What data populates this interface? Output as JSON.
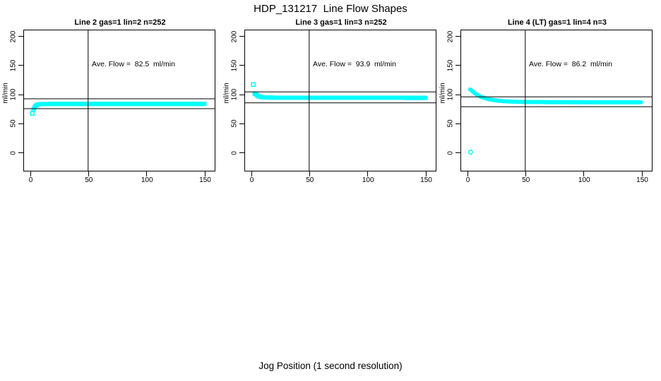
{
  "colors": {
    "marker": "#00FFFF",
    "axis": "#000000",
    "background": "#FFFFFF"
  },
  "chart_data": {
    "type": "scatter",
    "title": "HDP_131217  Line Flow Shapes",
    "xlabel": "Jog Position (1 second resolution)",
    "xlim": [
      0,
      150
    ],
    "ylim": [
      0,
      200
    ],
    "xticks": [
      0,
      50,
      100,
      150
    ],
    "yticks": [
      0,
      50,
      100,
      150,
      200
    ],
    "grid": false,
    "legend": "none",
    "panels": [
      {
        "title": "Line 2 gas=1 lin=2 n=252",
        "ylabel": "ml/min",
        "annotation": "Ave. Flow =  82.5  ml/min",
        "ave_flow_ml_min": 82.5,
        "marker": "square",
        "vline_x": 50,
        "hlines": [
          91.5,
          74.5
        ],
        "outlier": [
          2,
          66.5
        ],
        "points": [
          [
            3,
            73
          ],
          [
            3.5,
            75.3
          ],
          [
            4,
            77.2
          ],
          [
            4.5,
            78.6
          ],
          [
            5,
            79.7
          ],
          [
            5.5,
            80.5
          ],
          [
            6,
            81.1
          ],
          [
            6.5,
            81.5
          ],
          [
            7,
            81.8
          ],
          [
            8,
            82.1
          ],
          [
            9,
            82.3
          ],
          [
            10,
            82.4
          ],
          [
            12,
            82.5
          ],
          [
            14,
            82.6
          ],
          [
            16,
            82.6
          ],
          [
            18,
            82.7
          ],
          [
            20,
            82.7
          ],
          [
            25,
            82.7
          ],
          [
            30,
            82.7
          ],
          [
            35,
            82.7
          ],
          [
            40,
            82.7
          ],
          [
            45,
            82.7
          ],
          [
            50,
            82.7
          ],
          [
            55,
            82.7
          ],
          [
            60,
            82.7
          ],
          [
            65,
            82.7
          ],
          [
            70,
            82.7
          ],
          [
            75,
            82.7
          ],
          [
            80,
            82.7
          ],
          [
            85,
            82.7
          ],
          [
            90,
            82.7
          ],
          [
            95,
            82.7
          ],
          [
            100,
            82.7
          ],
          [
            105,
            82.7
          ],
          [
            110,
            82.7
          ],
          [
            115,
            82.7
          ],
          [
            120,
            82.7
          ],
          [
            125,
            82.7
          ],
          [
            130,
            82.7
          ],
          [
            135,
            82.7
          ],
          [
            140,
            82.7
          ],
          [
            145,
            82.7
          ],
          [
            150,
            82.7
          ]
        ]
      },
      {
        "title": "Line 3 gas=1 lin=3 n=252",
        "ylabel": "ml/min",
        "annotation": "Ave. Flow =  93.9  ml/min",
        "ave_flow_ml_min": 93.9,
        "marker": "square",
        "vline_x": 50,
        "hlines": [
          103.3,
          84.5
        ],
        "outlier": [
          2,
          116
        ],
        "points": [
          [
            3,
            100.5
          ],
          [
            3.5,
            99.4
          ],
          [
            4,
            100
          ],
          [
            4.5,
            98.8
          ],
          [
            5,
            97.9
          ],
          [
            5.5,
            97.1
          ],
          [
            6,
            96.4
          ],
          [
            6.5,
            95.9
          ],
          [
            7,
            95.4
          ],
          [
            7.5,
            95.1
          ],
          [
            8,
            94.8
          ],
          [
            9,
            94.4
          ],
          [
            10,
            94.1
          ],
          [
            11,
            93.9
          ],
          [
            12,
            93.8
          ],
          [
            14,
            93.7
          ],
          [
            16,
            93.6
          ],
          [
            18,
            93.6
          ],
          [
            20,
            93.5
          ],
          [
            25,
            93.5
          ],
          [
            30,
            93.5
          ],
          [
            35,
            93.4
          ],
          [
            40,
            93.4
          ],
          [
            45,
            93.4
          ],
          [
            50,
            93.4
          ],
          [
            55,
            93.4
          ],
          [
            60,
            93.3
          ],
          [
            65,
            93.3
          ],
          [
            70,
            93.3
          ],
          [
            75,
            93.3
          ],
          [
            80,
            93.3
          ],
          [
            85,
            93.3
          ],
          [
            90,
            93.3
          ],
          [
            95,
            93.3
          ],
          [
            100,
            93.2
          ],
          [
            105,
            93.2
          ],
          [
            110,
            93.2
          ],
          [
            115,
            93.2
          ],
          [
            120,
            93.2
          ],
          [
            125,
            93.2
          ],
          [
            130,
            93.2
          ],
          [
            135,
            93.1
          ],
          [
            140,
            93.1
          ],
          [
            145,
            93.1
          ],
          [
            150,
            93.1
          ]
        ]
      },
      {
        "title": "Line 4 (LT) gas=1 lin=4 n=3",
        "ylabel": "ml/min",
        "annotation": "Ave. Flow =  86.2  ml/min",
        "ave_flow_ml_min": 86.2,
        "marker": "circle",
        "vline_x": 50,
        "hlines": [
          94.9,
          77.9
        ],
        "outlier": [
          3,
          0
        ],
        "points": [
          [
            2.5,
            107.5
          ],
          [
            3,
            107.1
          ],
          [
            3.5,
            106.2
          ],
          [
            4,
            105.3
          ],
          [
            4.5,
            104.4
          ],
          [
            5,
            103.6
          ],
          [
            5.5,
            102.8
          ],
          [
            6,
            102
          ],
          [
            6.5,
            101.3
          ],
          [
            7,
            100.5
          ],
          [
            7.5,
            99.9
          ],
          [
            8,
            99.2
          ],
          [
            8.5,
            98.6
          ],
          [
            9,
            98
          ],
          [
            10,
            96.9
          ],
          [
            11,
            95.9
          ],
          [
            12,
            95
          ],
          [
            13,
            94.2
          ],
          [
            14,
            93.5
          ],
          [
            15,
            92.8
          ],
          [
            16,
            92.2
          ],
          [
            17,
            91.6
          ],
          [
            18,
            91.1
          ],
          [
            19,
            90.7
          ],
          [
            20,
            90.3
          ],
          [
            22,
            89.5
          ],
          [
            24,
            88.9
          ],
          [
            26,
            88.4
          ],
          [
            28,
            88
          ],
          [
            30,
            87.6
          ],
          [
            32,
            87.3
          ],
          [
            34,
            87.1
          ],
          [
            36,
            86.9
          ],
          [
            38,
            86.7
          ],
          [
            40,
            86.5
          ],
          [
            45,
            86.2
          ],
          [
            50,
            86
          ],
          [
            55,
            85.9
          ],
          [
            60,
            85.8
          ],
          [
            65,
            85.8
          ],
          [
            70,
            85.7
          ],
          [
            75,
            85.7
          ],
          [
            80,
            85.7
          ],
          [
            85,
            85.6
          ],
          [
            90,
            85.6
          ],
          [
            95,
            85.6
          ],
          [
            100,
            85.6
          ],
          [
            105,
            85.5
          ],
          [
            110,
            85.5
          ],
          [
            115,
            85.5
          ],
          [
            120,
            85.5
          ],
          [
            125,
            85.5
          ],
          [
            130,
            85.4
          ],
          [
            135,
            85.4
          ],
          [
            140,
            85.4
          ],
          [
            145,
            85.4
          ],
          [
            150,
            85.4
          ]
        ]
      }
    ]
  }
}
